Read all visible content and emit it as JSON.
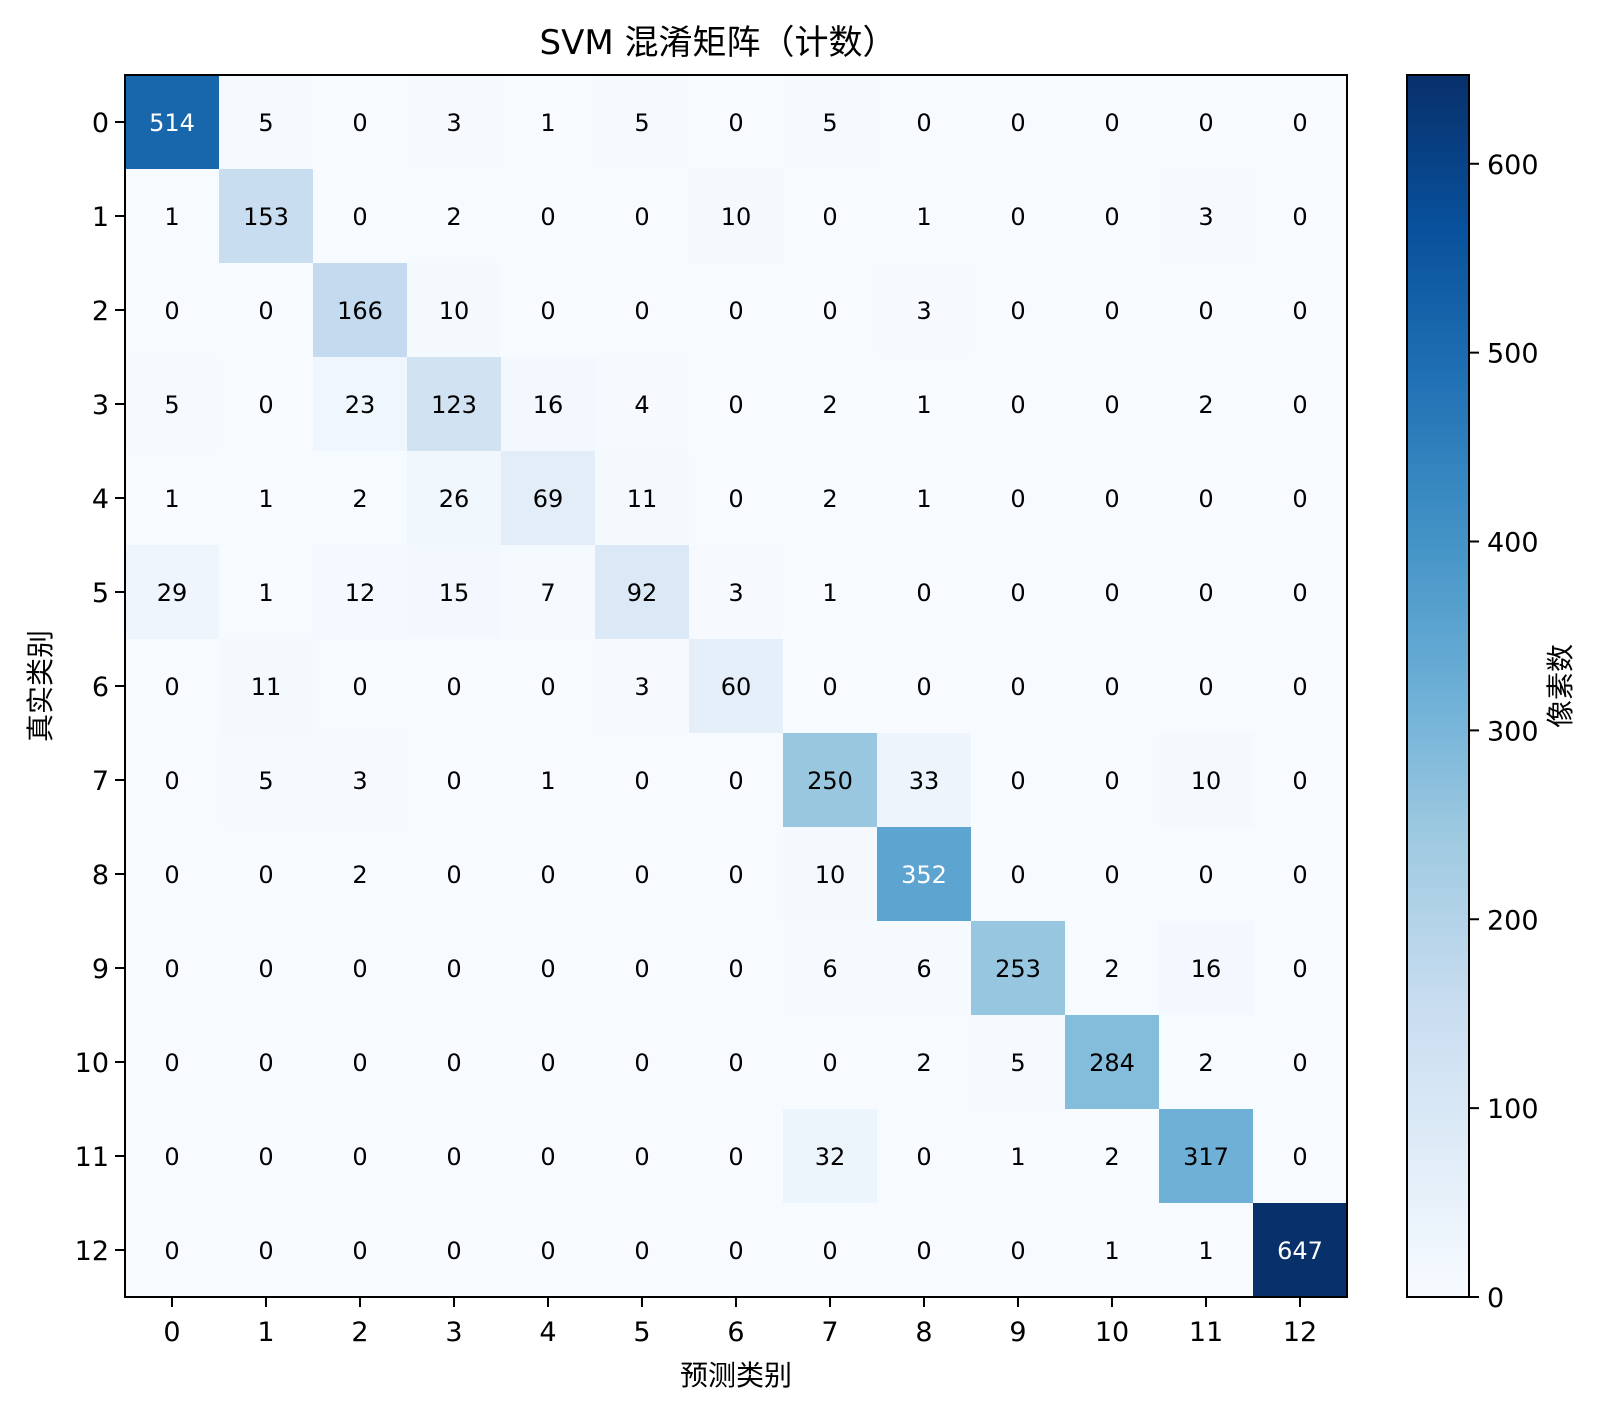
{
  "chart_data": {
    "type": "heatmap",
    "title": "SVM 混淆矩阵（计数）",
    "xlabel": "预测类别",
    "ylabel": "真实类别",
    "x_categories": [
      "0",
      "1",
      "2",
      "3",
      "4",
      "5",
      "6",
      "7",
      "8",
      "9",
      "10",
      "11",
      "12"
    ],
    "y_categories": [
      "0",
      "1",
      "2",
      "3",
      "4",
      "5",
      "6",
      "7",
      "8",
      "9",
      "10",
      "11",
      "12"
    ],
    "values": [
      [
        514,
        5,
        0,
        3,
        1,
        5,
        0,
        5,
        0,
        0,
        0,
        0,
        0
      ],
      [
        1,
        153,
        0,
        2,
        0,
        0,
        10,
        0,
        1,
        0,
        0,
        3,
        0
      ],
      [
        0,
        0,
        166,
        10,
        0,
        0,
        0,
        0,
        3,
        0,
        0,
        0,
        0
      ],
      [
        5,
        0,
        23,
        123,
        16,
        4,
        0,
        2,
        1,
        0,
        0,
        2,
        0
      ],
      [
        1,
        1,
        2,
        26,
        69,
        11,
        0,
        2,
        1,
        0,
        0,
        0,
        0
      ],
      [
        29,
        1,
        12,
        15,
        7,
        92,
        3,
        1,
        0,
        0,
        0,
        0,
        0
      ],
      [
        0,
        11,
        0,
        0,
        0,
        3,
        60,
        0,
        0,
        0,
        0,
        0,
        0
      ],
      [
        0,
        5,
        3,
        0,
        1,
        0,
        0,
        250,
        33,
        0,
        0,
        10,
        0
      ],
      [
        0,
        0,
        2,
        0,
        0,
        0,
        0,
        10,
        352,
        0,
        0,
        0,
        0
      ],
      [
        0,
        0,
        0,
        0,
        0,
        0,
        0,
        6,
        6,
        253,
        2,
        16,
        0
      ],
      [
        0,
        0,
        0,
        0,
        0,
        0,
        0,
        0,
        2,
        5,
        284,
        2,
        0
      ],
      [
        0,
        0,
        0,
        0,
        0,
        0,
        0,
        32,
        0,
        1,
        2,
        317,
        0
      ],
      [
        0,
        0,
        0,
        0,
        0,
        0,
        0,
        0,
        0,
        0,
        1,
        1,
        647
      ]
    ],
    "colormap": "Blues",
    "colormap_stops": [
      "#f7fbff",
      "#deebf7",
      "#c6dbef",
      "#9ecae1",
      "#6baed6",
      "#4292c6",
      "#2171b5",
      "#08519c",
      "#08306b"
    ],
    "vmin": 0,
    "vmax": 647,
    "colorbar": {
      "label": "像素数",
      "ticks": [
        0,
        100,
        200,
        300,
        400,
        500,
        600
      ]
    },
    "text_color_dark": "#000000",
    "text_color_light": "#ffffff"
  }
}
